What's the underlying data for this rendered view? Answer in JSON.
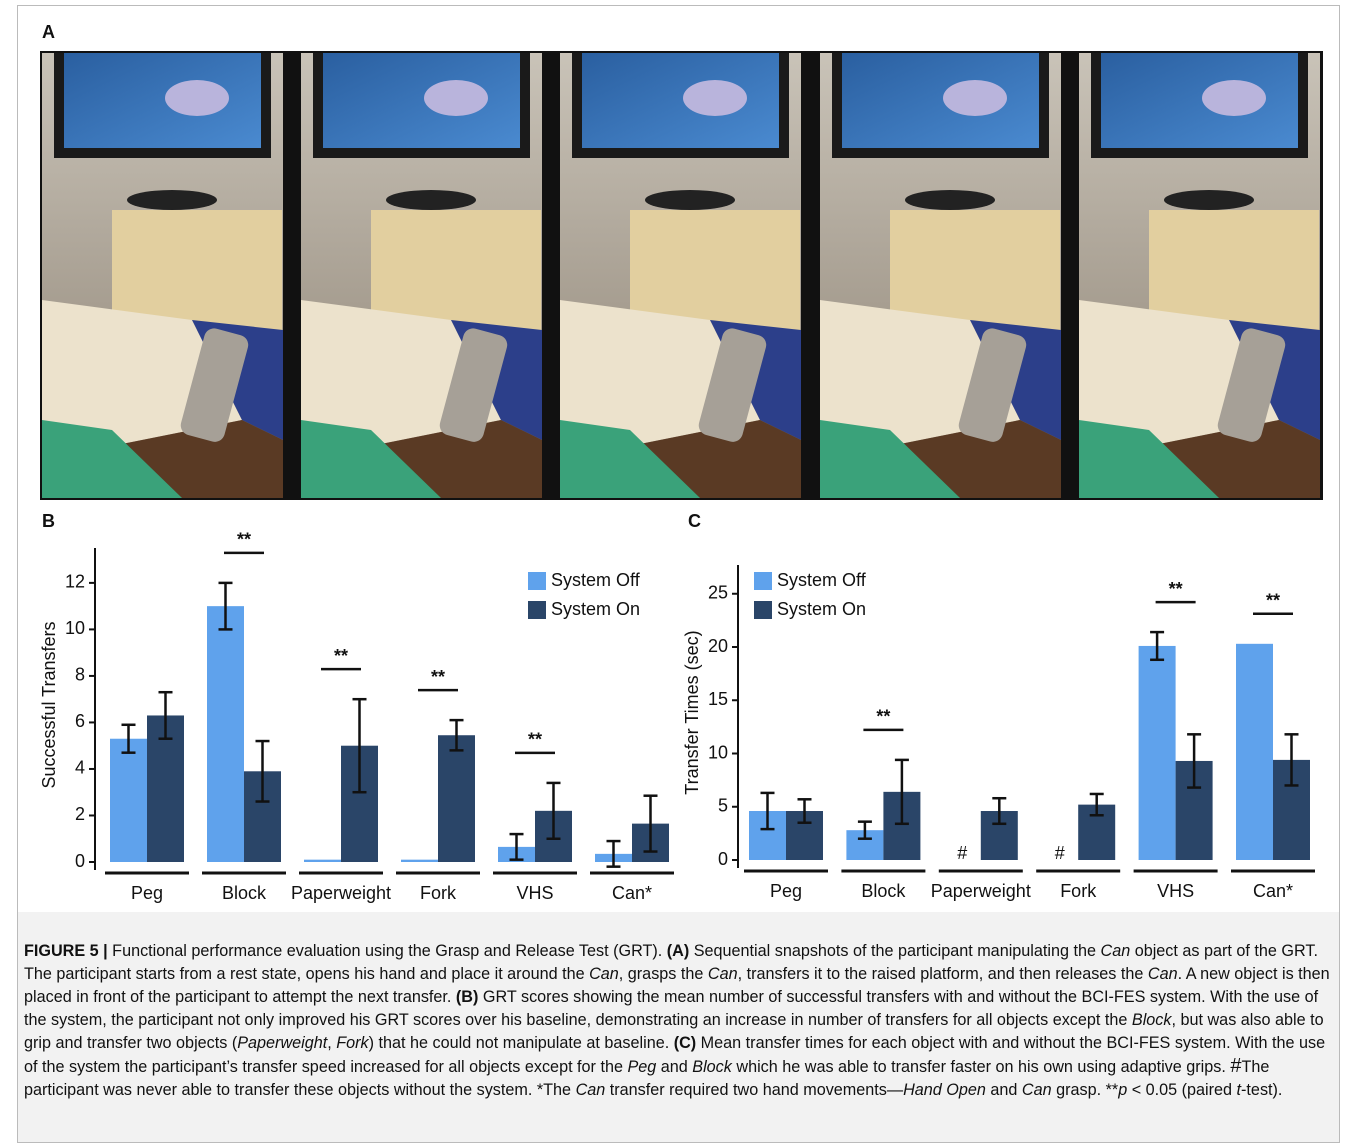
{
  "panel_labels": {
    "a": "A",
    "b": "B",
    "c": "C"
  },
  "chart_data": [
    {
      "type": "bar",
      "y_label": "Successful Transfers",
      "categories": [
        "Peg",
        "Block",
        "Paperweight",
        "Fork",
        "VHS",
        "Can*"
      ],
      "ylim": [
        0,
        13.5
      ],
      "yticks": [
        0,
        2,
        4,
        6,
        8,
        10,
        12
      ],
      "legend": "upper right",
      "series": [
        {
          "name": "System Off",
          "color": "#5fa2ec",
          "values": [
            5.3,
            11.0,
            0.1,
            0.1,
            0.65,
            0.35
          ],
          "errors": [
            0.6,
            1.0,
            null,
            null,
            0.55,
            0.55
          ]
        },
        {
          "name": "System On",
          "color": "#2a4568",
          "values": [
            6.3,
            3.9,
            5.0,
            5.45,
            2.2,
            1.65
          ],
          "errors": [
            1.0,
            1.3,
            2.0,
            0.65,
            1.2,
            1.2
          ]
        }
      ],
      "annotations": [
        null,
        "**",
        "**",
        "**",
        "**",
        null
      ]
    },
    {
      "type": "bar",
      "y_label": "Transfer Times (sec)",
      "categories": [
        "Peg",
        "Block",
        "Paperweight",
        "Fork",
        "VHS",
        "Can*"
      ],
      "ylim": [
        0,
        27.7
      ],
      "yticks": [
        0,
        5,
        10,
        15,
        20,
        25
      ],
      "legend": "upper left",
      "series": [
        {
          "name": "System Off",
          "color": "#5fa2ec",
          "values": [
            4.6,
            2.8,
            null,
            null,
            20.1,
            20.3
          ],
          "errors": [
            1.7,
            0.8,
            null,
            null,
            1.3,
            null
          ],
          "notes": [
            null,
            null,
            "#",
            "#",
            null,
            null
          ]
        },
        {
          "name": "System On",
          "color": "#2a4568",
          "values": [
            4.6,
            6.4,
            4.6,
            5.2,
            9.3,
            9.4
          ],
          "errors": [
            1.1,
            3.0,
            1.2,
            1.0,
            2.5,
            2.4
          ]
        }
      ],
      "annotations": [
        null,
        "**",
        null,
        null,
        "**",
        "**"
      ]
    }
  ],
  "caption": [
    {
      "text": "FIGURE 5 |",
      "style": "bold"
    },
    {
      "text": " Functional performance evaluation using the Grasp and Release Test (GRT). ",
      "style": "normal"
    },
    {
      "text": "(A)",
      "style": "bold"
    },
    {
      "text": " Sequential snapshots of the participant manipulating the ",
      "style": "normal"
    },
    {
      "text": "Can",
      "style": "italic"
    },
    {
      "text": " object as part of the GRT. The participant starts from a rest state, opens his hand and place it around the ",
      "style": "normal"
    },
    {
      "text": "Can",
      "style": "italic"
    },
    {
      "text": ", grasps the ",
      "style": "normal"
    },
    {
      "text": "Can",
      "style": "italic"
    },
    {
      "text": ", transfers it to the raised platform, and then releases the ",
      "style": "normal"
    },
    {
      "text": "Can",
      "style": "italic"
    },
    {
      "text": ". A new object is then placed in front of the participant to attempt the next transfer. ",
      "style": "normal"
    },
    {
      "text": "(B)",
      "style": "bold"
    },
    {
      "text": " GRT scores showing the mean number of successful transfers with and without the BCI-FES system. With the use of the system, the participant not only improved his GRT scores over his baseline, demonstrating an increase in number of transfers for all objects except the ",
      "style": "normal"
    },
    {
      "text": "Block",
      "style": "italic"
    },
    {
      "text": ", but was also able to grip and transfer two objects (",
      "style": "normal"
    },
    {
      "text": "Paperweight",
      "style": "italic"
    },
    {
      "text": ", ",
      "style": "normal"
    },
    {
      "text": "Fork",
      "style": "italic"
    },
    {
      "text": ") that he could not manipulate at baseline. ",
      "style": "normal"
    },
    {
      "text": "(C)",
      "style": "bold"
    },
    {
      "text": " Mean transfer times for each object with and without the BCI-FES system. With the use of the system the participant’s transfer speed increased for all objects except for the ",
      "style": "normal"
    },
    {
      "text": "Peg",
      "style": "italic"
    },
    {
      "text": " and ",
      "style": "normal"
    },
    {
      "text": "Block",
      "style": "italic"
    },
    {
      "text": " which he was able to transfer faster on his own using adaptive grips. ",
      "style": "normal"
    },
    {
      "text": "#",
      "style": "large"
    },
    {
      "text": "The participant was never able to transfer these objects without the system. *The ",
      "style": "normal"
    },
    {
      "text": "Can",
      "style": "italic"
    },
    {
      "text": " transfer required two hand movements—",
      "style": "normal"
    },
    {
      "text": "Hand Open",
      "style": "italic"
    },
    {
      "text": " and ",
      "style": "normal"
    },
    {
      "text": "Can",
      "style": "italic"
    },
    {
      "text": " grasp. **",
      "style": "normal"
    },
    {
      "text": "p",
      "style": "italic"
    },
    {
      "text": " < 0.05 (paired ",
      "style": "normal"
    },
    {
      "text": "t",
      "style": "italic"
    },
    {
      "text": "-test).",
      "style": "normal"
    }
  ]
}
